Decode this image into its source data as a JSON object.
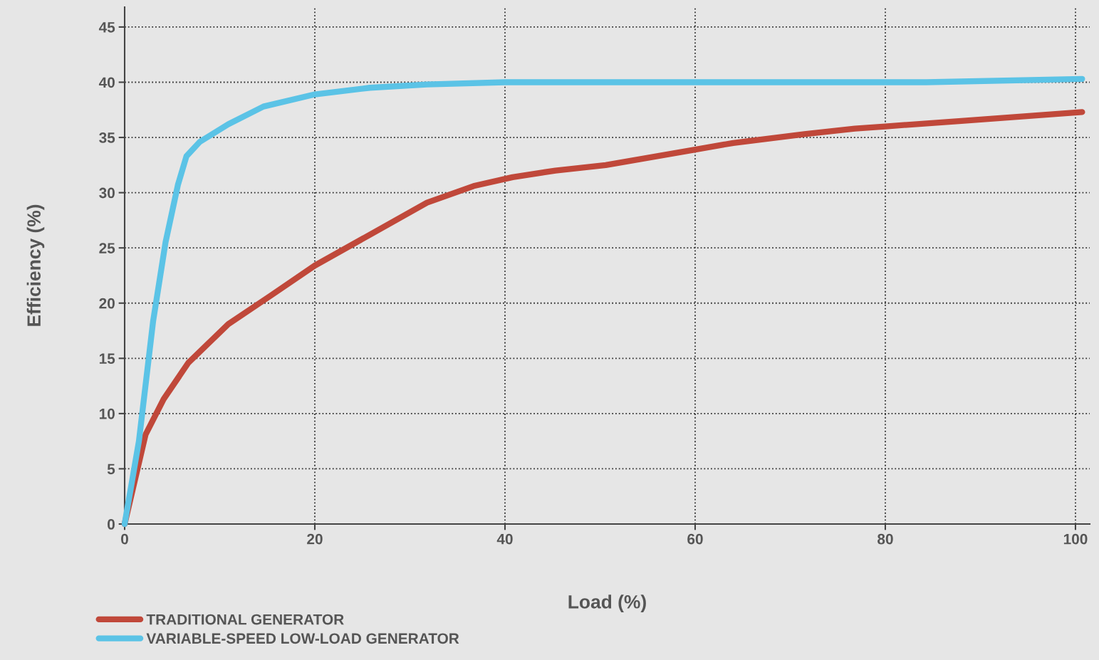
{
  "chart_data": {
    "type": "line",
    "xlabel": "Load (%)",
    "ylabel": "Efficiency (%)",
    "xlim": [
      0,
      101.5
    ],
    "ylim": [
      0,
      46.8
    ],
    "xticks": [
      0,
      20,
      40,
      60,
      80,
      100
    ],
    "yticks": [
      0,
      5,
      10,
      15,
      20,
      25,
      30,
      35,
      40,
      45
    ],
    "grid": true,
    "legend": "bottom left",
    "marker": "none",
    "line_style": "solid",
    "series": [
      {
        "name": "TRADITIONAL GENERATOR",
        "color": "#c0483a",
        "x": [
          0,
          2.2,
          4.1,
          6.7,
          10.9,
          15.4,
          20,
          25.8,
          31.8,
          36.7,
          40.8,
          45.3,
          50.6,
          60,
          64,
          71.5,
          76.8,
          80,
          88,
          100.7
        ],
        "values": [
          0,
          8.1,
          11.3,
          14.6,
          18.1,
          20.7,
          23.4,
          26.2,
          29.1,
          30.6,
          31.4,
          32,
          32.5,
          33.9,
          34.5,
          35.3,
          35.8,
          36,
          36.5,
          37.3
        ]
      },
      {
        "name": "VARIABLE-SPEED LOW-LOAD GENERATOR",
        "color": "#5bc3e6",
        "x": [
          0,
          1.5,
          3,
          4.3,
          5.6,
          6.5,
          7.9,
          10.9,
          14.6,
          20,
          25.8,
          31.8,
          40,
          60,
          84.3,
          100.7
        ],
        "values": [
          0,
          7.5,
          18.4,
          25.5,
          30.7,
          33.3,
          34.6,
          36.2,
          37.8,
          38.9,
          39.5,
          39.8,
          40,
          40,
          40,
          40.3
        ]
      }
    ]
  }
}
